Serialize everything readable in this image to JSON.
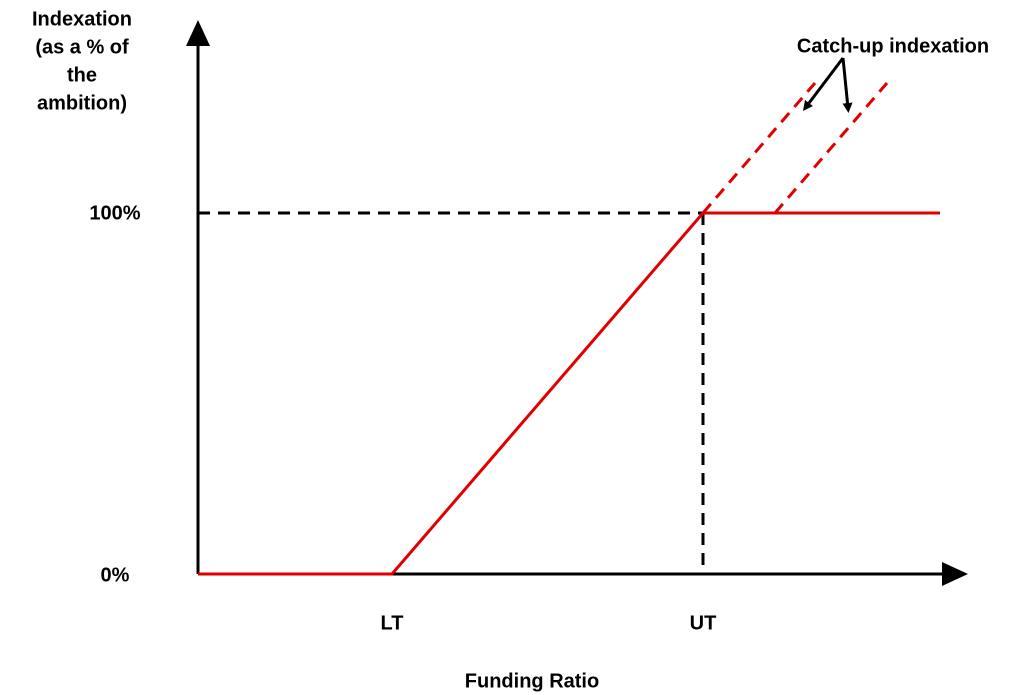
{
  "y_axis": {
    "title_lines": [
      "Indexation",
      "(as a % of",
      "the",
      "ambition)"
    ],
    "labels": [
      "100%",
      "0%"
    ]
  },
  "x_axis": {
    "title": "Funding Ratio",
    "labels": [
      "LT",
      "UT"
    ]
  },
  "annotation": "Catch-up indexation"
}
